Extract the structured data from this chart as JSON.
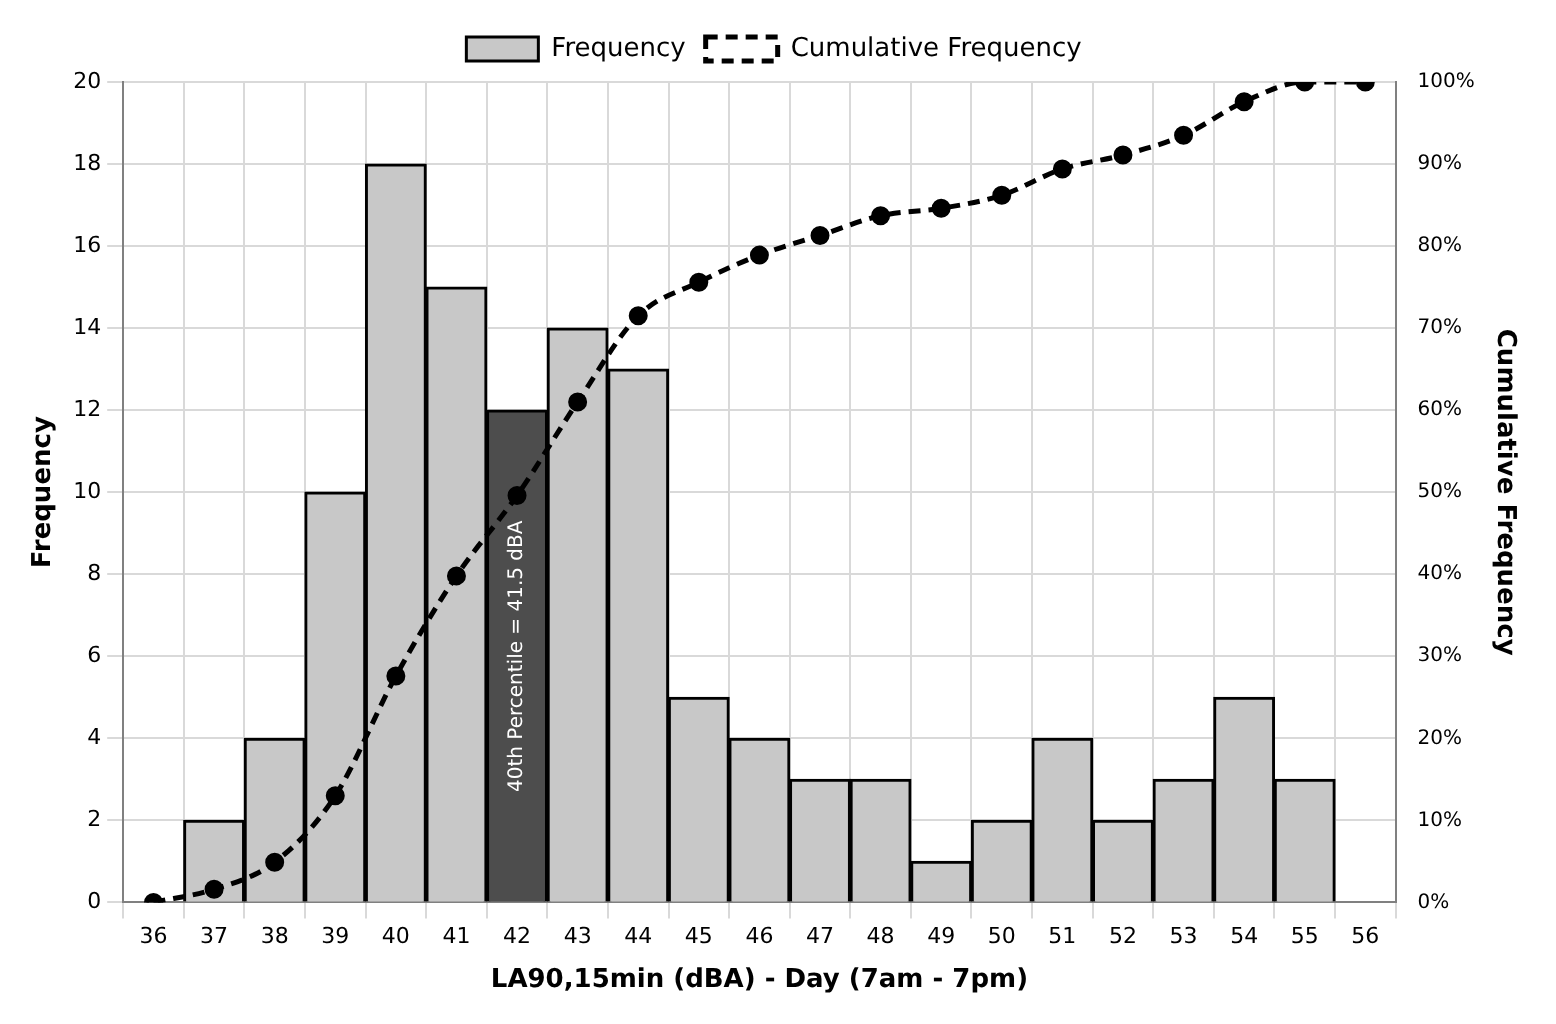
{
  "chart_data": {
    "type": "bar",
    "xlabel": "LA90,15min (dBA) - Day (7am - 7pm)",
    "ylabel": "Frequency",
    "y2label": "Cumulative Frequency",
    "categories": [
      "36",
      "37",
      "38",
      "39",
      "40",
      "41",
      "42",
      "43",
      "44",
      "45",
      "46",
      "47",
      "48",
      "49",
      "50",
      "51",
      "52",
      "53",
      "54",
      "55",
      "56"
    ],
    "series": [
      {
        "name": "Frequency",
        "color": "#c8c8c8",
        "colors": [
          "#c8c8c8",
          "#c8c8c8",
          "#c8c8c8",
          "#c8c8c8",
          "#c8c8c8",
          "#c8c8c8",
          "#4d4d4d",
          "#c8c8c8",
          "#c8c8c8",
          "#c8c8c8",
          "#c8c8c8",
          "#c8c8c8",
          "#c8c8c8",
          "#c8c8c8",
          "#c8c8c8",
          "#c8c8c8",
          "#c8c8c8",
          "#c8c8c8",
          "#c8c8c8",
          "#c8c8c8",
          "#c8c8c8"
        ],
        "values": [
          null,
          2,
          4,
          10,
          18,
          15,
          12,
          14,
          13,
          5,
          4,
          3,
          3,
          1,
          2,
          4,
          2,
          3,
          5,
          3,
          null
        ]
      },
      {
        "name": "Cumulative Frequency",
        "type": "line",
        "axis": "y2",
        "color": "#000000",
        "marker": "circle",
        "line_style": "dashed",
        "values": [
          0,
          1.6,
          4.9,
          13,
          27.6,
          39.8,
          49.6,
          61,
          71.5,
          75.6,
          78.9,
          81.3,
          83.7,
          84.6,
          86.2,
          89.4,
          91.1,
          93.5,
          97.6,
          100,
          100
        ]
      }
    ],
    "ylim": [
      0,
      20
    ],
    "yticks": [
      0,
      2,
      4,
      6,
      8,
      10,
      12,
      14,
      16,
      18,
      20
    ],
    "y2lim": [
      0,
      100
    ],
    "y2ticks": [
      {
        "value": 0,
        "label": "0%"
      },
      {
        "value": 10,
        "label": "10%"
      },
      {
        "value": 20,
        "label": "20%"
      },
      {
        "value": 30,
        "label": "30%"
      },
      {
        "value": 40,
        "label": "40%"
      },
      {
        "value": 50,
        "label": "50%"
      },
      {
        "value": 60,
        "label": "60%"
      },
      {
        "value": 70,
        "label": "70%"
      },
      {
        "value": 80,
        "label": "80%"
      },
      {
        "value": 90,
        "label": "90%"
      },
      {
        "value": 100,
        "label": "100%"
      }
    ],
    "annotations": [
      "40th Percentile = 41.5 dBA"
    ],
    "grid": true,
    "legend": "top"
  }
}
